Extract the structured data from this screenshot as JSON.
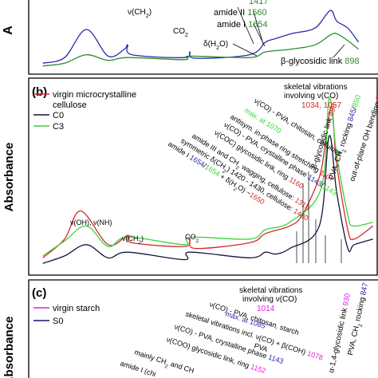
{
  "chart_data": [
    {
      "type": "line",
      "panel_label": "",
      "ylabel": "A",
      "series": [
        {
          "name": "",
          "color": "#2a2aa8",
          "x": [
            3700,
            3500,
            3300,
            3100,
            2950,
            2920,
            2880,
            2400,
            2350,
            2300,
            1800,
            1654,
            1560,
            1417,
            1200,
            1060,
            1000,
            898,
            800
          ],
          "y": [
            0.1,
            0.18,
            0.58,
            0.2,
            0.3,
            0.36,
            0.22,
            0.18,
            0.26,
            0.17,
            0.22,
            0.4,
            0.45,
            0.52,
            0.6,
            0.85,
            0.7,
            0.6,
            0.4
          ]
        },
        {
          "name": "",
          "color": "#2e8b2e",
          "x": [
            3700,
            3500,
            3300,
            3100,
            2920,
            2400,
            2350,
            1800,
            1654,
            1417,
            1200,
            1060,
            1000,
            898,
            800
          ],
          "y": [
            0.06,
            0.1,
            0.22,
            0.14,
            0.18,
            0.15,
            0.2,
            0.18,
            0.26,
            0.3,
            0.36,
            0.5,
            0.52,
            0.42,
            0.3
          ]
        }
      ],
      "annotations": [
        {
          "text": "ν(CH",
          "sub": "2",
          "tail": ")"
        },
        {
          "text": "CO",
          "sub": "2",
          "tail": ""
        },
        {
          "text": "δ(H",
          "sub": "2",
          "tail": "O)"
        },
        {
          "text": "amide I",
          "value": "1654",
          "value_color": "#2e8b2e"
        },
        {
          "text": "amide II",
          "value": "1560",
          "value_color": "#2e8b2e"
        },
        {
          "text": "",
          "value": "1417",
          "value_color": "#2e8b2e"
        },
        {
          "text": "β-glycosidic link",
          "value": "898",
          "value_color": "#2e8b2e"
        }
      ]
    },
    {
      "type": "line",
      "panel_label": "(b)",
      "ylabel": "Absorbance",
      "series": [
        {
          "name": "virgin microcrystalline cellulose",
          "color": "#d42a2a",
          "x": [
            3700,
            3500,
            3350,
            3100,
            2920,
            2880,
            2400,
            2350,
            2300,
            1800,
            1650,
            1430,
            1315,
            1160,
            1107,
            1057,
            1034,
            1000,
            898,
            840,
            667
          ],
          "y": [
            0.05,
            0.15,
            0.3,
            0.12,
            0.17,
            0.13,
            0.11,
            0.15,
            0.1,
            0.13,
            0.18,
            0.22,
            0.28,
            0.48,
            0.65,
            0.85,
            0.8,
            0.55,
            0.2,
            0.15,
            0.22
          ]
        },
        {
          "name": "C0",
          "color": "#14143c",
          "x": [
            3700,
            3500,
            3300,
            3100,
            2920,
            2400,
            2350,
            1800,
            1654,
            1560,
            1430,
            1160,
            1070,
            1000,
            898,
            840,
            667
          ],
          "y": [
            0.02,
            0.06,
            0.12,
            0.05,
            0.08,
            0.04,
            0.08,
            0.05,
            0.08,
            0.07,
            0.1,
            0.22,
            0.7,
            0.4,
            0.1,
            0.12,
            0.15
          ]
        },
        {
          "name": "C3",
          "color": "#3cd23c",
          "x": [
            3700,
            3500,
            3300,
            3100,
            2920,
            2400,
            2350,
            1800,
            1654,
            1430,
            1143,
            1070,
            1000,
            898,
            850,
            667
          ],
          "y": [
            0.06,
            0.14,
            0.22,
            0.11,
            0.16,
            0.12,
            0.16,
            0.15,
            0.2,
            0.24,
            0.42,
            0.9,
            0.6,
            0.28,
            0.22,
            0.24
          ]
        }
      ],
      "annotations": [
        {
          "parts": [
            [
              "skeletal vibrations",
              "#000"
            ]
          ]
        },
        {
          "parts": [
            [
              "involving ν(CO)",
              "#000"
            ]
          ]
        },
        {
          "parts": [
            [
              "1034, 1057",
              "#d42a2a"
            ]
          ]
        },
        {
          "parts": [
            [
              "ν(CO) - PVA, chitosan, cellulose",
              "#000"
            ]
          ]
        },
        {
          "parts": [
            [
              "max. at 1070",
              "#3cd23c"
            ]
          ]
        },
        {
          "parts": [
            [
              "antisym. in-phase ring stretching ",
              "#000"
            ],
            [
              "1107",
              "#d42a2a"
            ]
          ]
        },
        {
          "parts": [
            [
              "ν(CO) - PVA, crystalline phase ",
              "#000"
            ],
            [
              "1143",
              "#2a2aa8"
            ],
            [
              "/",
              "#000"
            ],
            [
              "1143",
              "#3cd23c"
            ]
          ]
        },
        {
          "parts": [
            [
              "ν(COC) glycosidic link, ring ",
              "#000"
            ],
            [
              "1160",
              "#d42a2a"
            ]
          ]
        },
        {
          "parts": [
            [
              "amide III and CH",
              "#000"
            ],
            [
              "2",
              "#000",
              "sub"
            ],
            [
              " wagging, cellulose: ",
              "#000"
            ],
            [
              "1315",
              "#d42a2a"
            ]
          ]
        },
        {
          "parts": [
            [
              "symmetric δ(CH",
              "#000"
            ],
            [
              "2",
              "#000",
              "sub"
            ],
            [
              ") 1420 - 1430, cellulose: ",
              "#000"
            ],
            [
              "1430",
              "#d42a2a"
            ]
          ]
        },
        {
          "parts": [
            [
              "amide I ",
              "#000"
            ],
            [
              "1654",
              "#2a2aa8"
            ],
            [
              "/",
              "#000"
            ],
            [
              "1654",
              "#3cd23c"
            ],
            [
              " + δ(H",
              "#000"
            ],
            [
              "2",
              "#000",
              "sub"
            ],
            [
              "O) ~",
              "#000"
            ],
            [
              "1650",
              "#d42a2a"
            ]
          ]
        },
        {
          "parts": [
            [
              "β-glycosidic link ",
              "#000"
            ],
            [
              "898",
              "#d42a2a"
            ]
          ]
        },
        {
          "parts": [
            [
              "PVA, CH",
              "#000"
            ],
            [
              "2",
              "#000",
              "sub"
            ],
            [
              " rocking ",
              "#000"
            ],
            [
              "845",
              "#2a2aa8"
            ],
            [
              "/",
              "#000"
            ],
            [
              "850",
              "#3cd23c"
            ]
          ]
        },
        {
          "parts": [
            [
              "out-of-plane OH bending ",
              "#000"
            ],
            [
              "667",
              "#d42a2a"
            ]
          ]
        },
        {
          "parts": [
            [
              "ν(OH), ν(NH)",
              "#000"
            ]
          ]
        },
        {
          "parts": [
            [
              "ν(CH",
              "#000"
            ],
            [
              "2",
              "#000",
              "sub"
            ],
            [
              ")",
              "#000"
            ]
          ]
        },
        {
          "parts": [
            [
              "CO",
              "#000"
            ],
            [
              "2",
              "#000",
              "sub"
            ]
          ]
        }
      ]
    },
    {
      "type": "line",
      "panel_label": "(c)",
      "ylabel": "Absorbance",
      "series": [
        {
          "name": "virgin starch",
          "color": "#e020e0",
          "x": [],
          "y": []
        },
        {
          "name": "S0",
          "color": "#14146e",
          "x": [],
          "y": []
        }
      ],
      "annotations": [
        {
          "parts": [
            [
              "skeletal vibrations",
              "#000"
            ]
          ]
        },
        {
          "parts": [
            [
              "involving ν(CO)",
              "#000"
            ]
          ]
        },
        {
          "parts": [
            [
              "1014",
              "#e020e0"
            ]
          ]
        },
        {
          "parts": [
            [
              "ν(CO) - PVA, chitosan, starch",
              "#000"
            ]
          ]
        },
        {
          "parts": [
            [
              "max. at 1085",
              "#2a2aa8"
            ]
          ]
        },
        {
          "parts": [
            [
              "skeletal vibrations incl. ν(CO) + β(COH) ",
              "#000"
            ],
            [
              "1078",
              "#e020e0"
            ]
          ]
        },
        {
          "parts": [
            [
              "ν(CO) - PVA, crystalline phase ",
              "#000"
            ],
            [
              "1143",
              "#2a2aa8"
            ]
          ]
        },
        {
          "parts": [
            [
              "ν(COO) glycosidic link, ring ",
              "#000"
            ],
            [
              "1152",
              "#e020e0"
            ]
          ]
        },
        {
          "parts": [
            [
              "PVA",
              "#000"
            ]
          ]
        },
        {
          "parts": [
            [
              "mainly CH",
              "#000"
            ],
            [
              "2",
              "#000",
              "sub"
            ],
            [
              " and CH",
              "#000"
            ]
          ]
        },
        {
          "parts": [
            [
              "amide I (chi",
              "#000"
            ]
          ]
        },
        {
          "parts": [
            [
              "α-1,4-glycosidic link ",
              "#000"
            ],
            [
              "930",
              "#e020e0"
            ]
          ]
        },
        {
          "parts": [
            [
              "PVA, CH",
              "#000"
            ],
            [
              "2",
              "#000",
              "sub"
            ],
            [
              " rocking ",
              "#000"
            ],
            [
              "847",
              "#2a2aa8"
            ]
          ]
        }
      ]
    }
  ]
}
